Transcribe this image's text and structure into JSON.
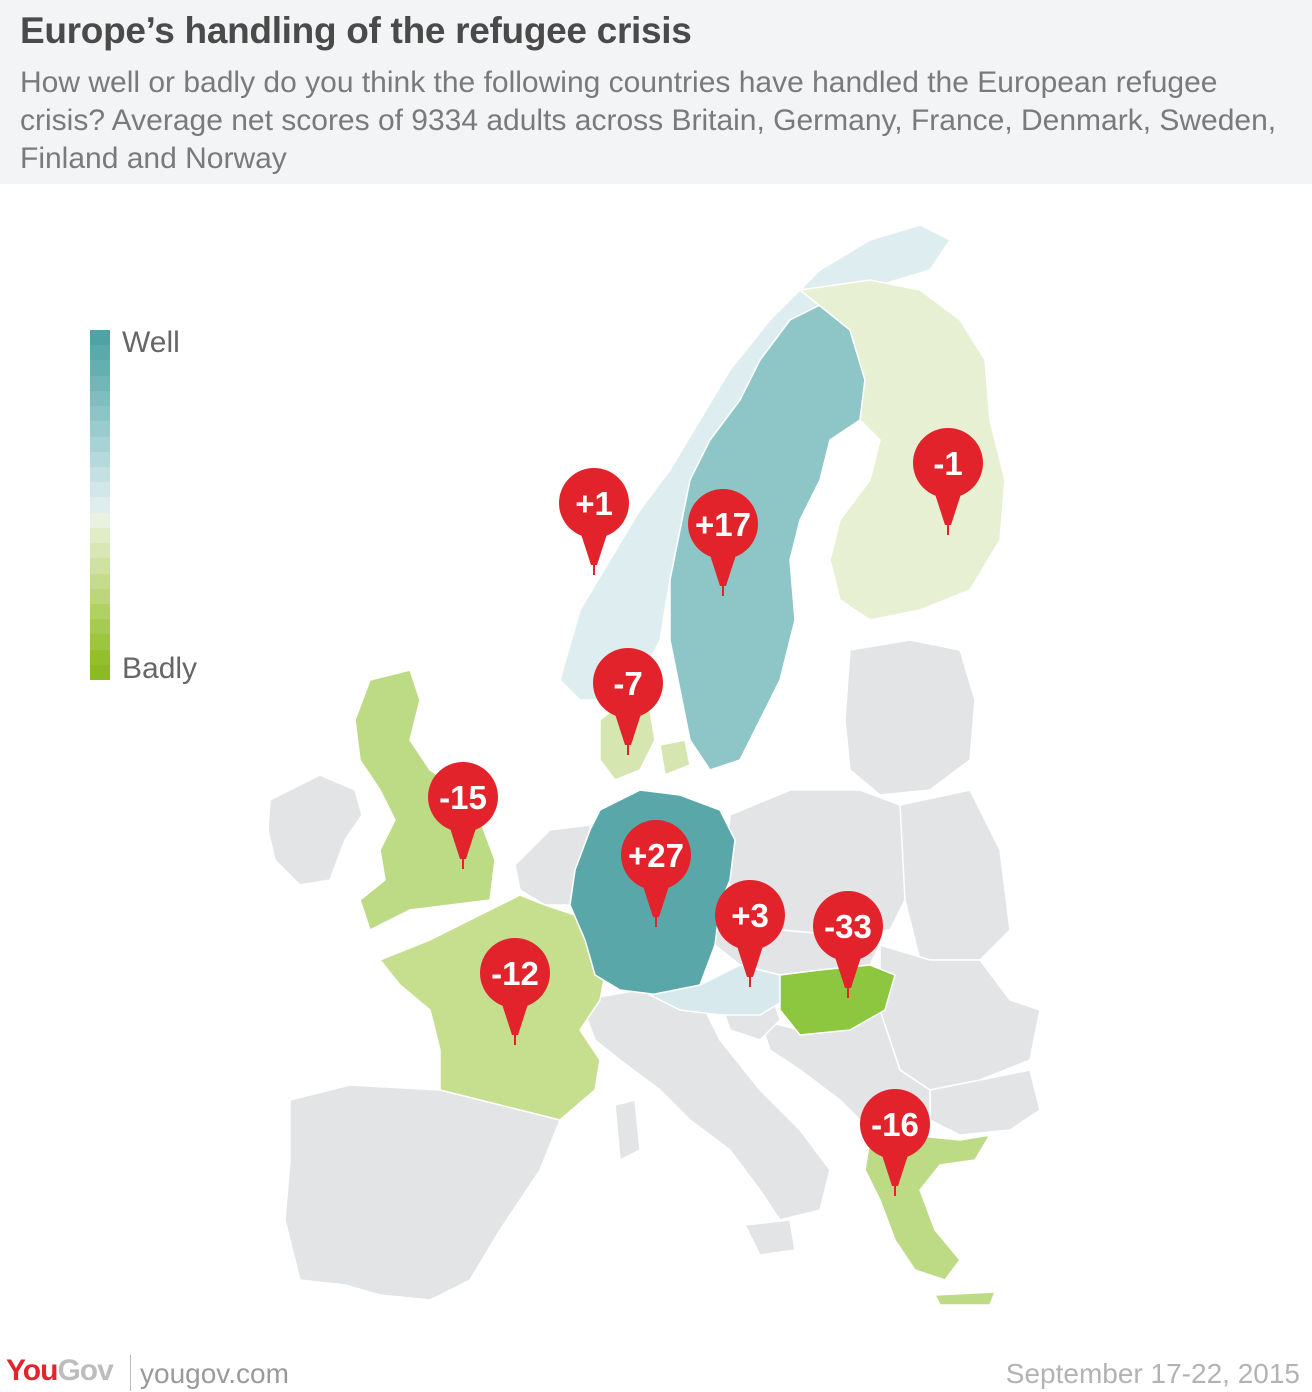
{
  "title": "Europe’s handling of the refugee crisis",
  "subtitle": "How well or badly do you think the following countries have handled the European refugee crisis? Average net scores of 9334 adults across Britain, Germany, France, Denmark, Sweden, Finland and Norway",
  "legend": {
    "top_label": "Well",
    "bottom_label": "Badly",
    "colors": [
      "#4fa3a5",
      "#5aa9ab",
      "#66afb1",
      "#73b6b8",
      "#80bdbf",
      "#8dc4c6",
      "#9acbcd",
      "#a8d2d4",
      "#b6d9db",
      "#c4e0e2",
      "#d2e7e9",
      "#e0edee",
      "#e9f1df",
      "#e1ecc9",
      "#d8e7b5",
      "#cfe2a1",
      "#c5dc8d",
      "#bbd779",
      "#b1d165",
      "#a7cb52",
      "#9dc53f",
      "#93bf2c",
      "#8cba22"
    ]
  },
  "map_data": {
    "countries": [
      {
        "name": "Norway",
        "score": 1,
        "label": "+1",
        "color": "#deedf0"
      },
      {
        "name": "Sweden",
        "score": 17,
        "label": "+17",
        "color": "#8ec6c8"
      },
      {
        "name": "Finland",
        "score": -1,
        "label": "-1",
        "color": "#e8f0d4"
      },
      {
        "name": "Denmark",
        "score": -7,
        "label": "-7",
        "color": "#d6e6b0"
      },
      {
        "name": "Britain",
        "score": -15,
        "label": "-15",
        "color": "#bddb85"
      },
      {
        "name": "Germany",
        "score": 27,
        "label": "+27",
        "color": "#5aa7a9"
      },
      {
        "name": "Austria",
        "score": 3,
        "label": "+3",
        "color": "#d8e9ee"
      },
      {
        "name": "Hungary",
        "score": -33,
        "label": "-33",
        "color": "#8dc63f"
      },
      {
        "name": "France",
        "score": -12,
        "label": "-12",
        "color": "#c5df8f"
      },
      {
        "name": "Greece",
        "score": -16,
        "label": "-16",
        "color": "#bddb85"
      }
    ],
    "other_color": "#e3e4e6",
    "marker_color": "#e3232b"
  },
  "footer": {
    "brand_you": "You",
    "brand_gov": "Gov",
    "site": "yougov.com",
    "date": "September 17-22, 2015"
  }
}
